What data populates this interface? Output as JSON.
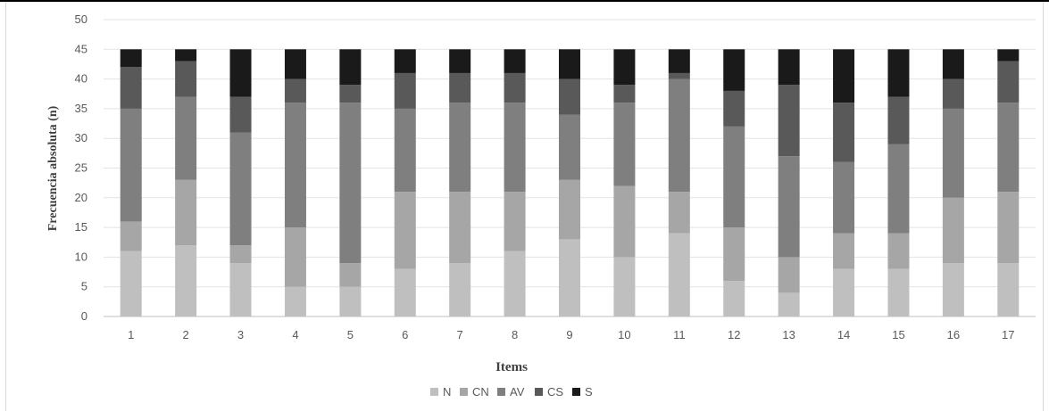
{
  "chart_data": {
    "type": "bar",
    "stacked": true,
    "xlabel": "Items",
    "ylabel": "Frecuencia absoluta (n)",
    "ylim": [
      0,
      50
    ],
    "yticks": [
      0,
      5,
      10,
      15,
      20,
      25,
      30,
      35,
      40,
      45,
      50
    ],
    "grid": true,
    "legend_position": "bottom",
    "categories": [
      "1",
      "2",
      "3",
      "4",
      "5",
      "6",
      "7",
      "8",
      "9",
      "10",
      "11",
      "12",
      "13",
      "14",
      "15",
      "16",
      "17"
    ],
    "series": [
      {
        "name": "N",
        "color": "#bfbfbf",
        "values": [
          11,
          12,
          9,
          5,
          5,
          8,
          9,
          11,
          13,
          10,
          14,
          6,
          4,
          8,
          8,
          9,
          9
        ]
      },
      {
        "name": "CN",
        "color": "#a6a6a6",
        "values": [
          5,
          11,
          3,
          10,
          4,
          13,
          12,
          10,
          10,
          12,
          7,
          9,
          6,
          6,
          6,
          11,
          12
        ]
      },
      {
        "name": "AV",
        "color": "#7f7f7f",
        "values": [
          19,
          14,
          19,
          21,
          27,
          14,
          15,
          15,
          11,
          14,
          19,
          17,
          17,
          12,
          15,
          15,
          15
        ]
      },
      {
        "name": "CS",
        "color": "#595959",
        "values": [
          7,
          6,
          6,
          4,
          3,
          6,
          5,
          5,
          6,
          3,
          1,
          6,
          12,
          10,
          8,
          5,
          7
        ]
      },
      {
        "name": "S",
        "color": "#1a1a1a",
        "values": [
          3,
          2,
          8,
          5,
          6,
          4,
          4,
          4,
          5,
          6,
          4,
          7,
          6,
          9,
          8,
          5,
          2
        ]
      }
    ]
  }
}
